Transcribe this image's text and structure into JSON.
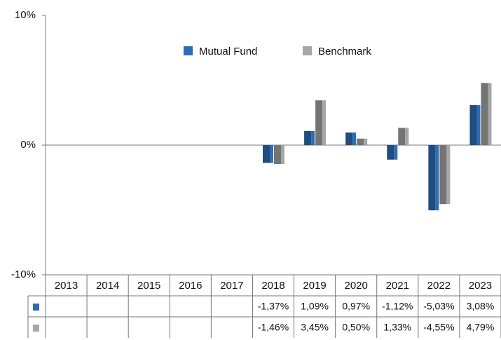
{
  "chart_data": {
    "type": "bar",
    "categories": [
      "2013",
      "2014",
      "2015",
      "2016",
      "2017",
      "2018",
      "2019",
      "2020",
      "2021",
      "2022",
      "2023"
    ],
    "series": [
      {
        "name": "Mutual Fund",
        "color": "#2e6db4",
        "values": [
          null,
          null,
          null,
          null,
          null,
          -1.37,
          1.09,
          0.97,
          -1.12,
          -5.03,
          3.08
        ],
        "value_labels": [
          null,
          null,
          null,
          null,
          null,
          "-1,37%",
          "1,09%",
          "0,97%",
          "-1,12%",
          "-5,03%",
          "3,08%"
        ]
      },
      {
        "name": "Benchmark",
        "color": "#a6a6a6",
        "values": [
          null,
          null,
          null,
          null,
          null,
          -1.46,
          3.45,
          0.5,
          1.33,
          -4.55,
          4.79
        ],
        "value_labels": [
          null,
          null,
          null,
          null,
          null,
          "-1,46%",
          "3,45%",
          "0,50%",
          "1,33%",
          "-4,55%",
          "4,79%"
        ]
      }
    ],
    "ylim": [
      -10,
      10
    ],
    "yticks": [
      {
        "value": -10,
        "label": "-10%"
      },
      {
        "value": 0,
        "label": "0%"
      },
      {
        "value": 10,
        "label": "10%"
      }
    ],
    "legend": "top"
  }
}
